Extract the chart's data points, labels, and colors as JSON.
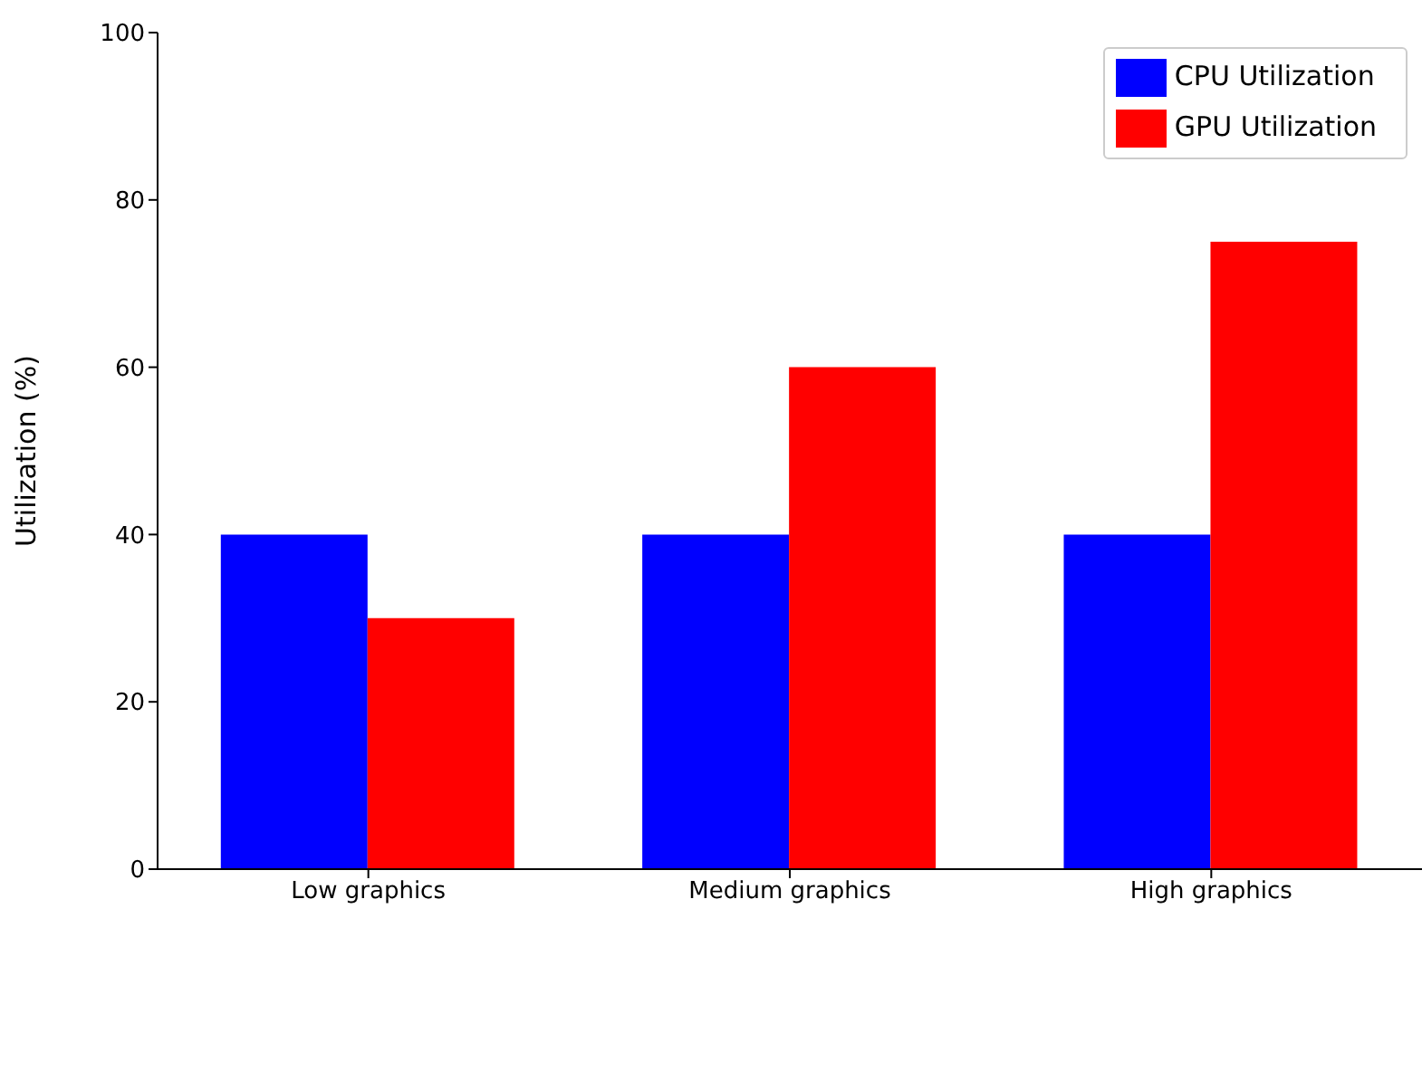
{
  "chart_data": {
    "type": "bar",
    "ylabel": "Utilization (%)",
    "categories": [
      "Low graphics",
      "Medium graphics",
      "High graphics"
    ],
    "series": [
      {
        "name": "CPU Utilization",
        "color": "#0000ff",
        "values": [
          40,
          40,
          40
        ]
      },
      {
        "name": "GPU Utilization",
        "color": "#ff0000",
        "values": [
          30,
          60,
          75
        ]
      }
    ],
    "ylim": [
      0,
      100
    ],
    "yticks": [
      0,
      20,
      40,
      60,
      80,
      100
    ],
    "grid": false,
    "legend": "top right"
  }
}
